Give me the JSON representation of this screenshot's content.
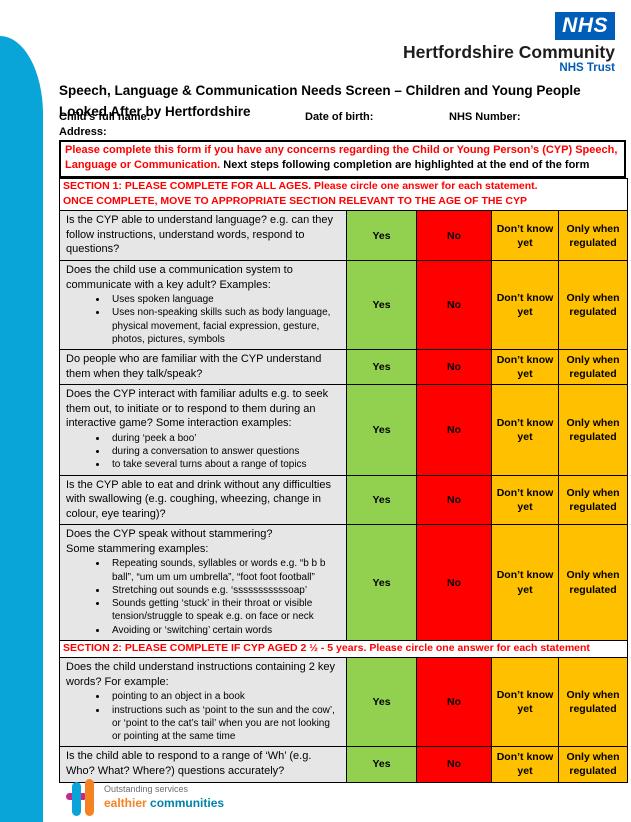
{
  "header": {
    "nhs_logo": "NHS",
    "org_name": "Hertfordshire Community",
    "org_sub": "NHS Trust"
  },
  "title": {
    "line1": "Speech, Language & Communication Needs Screen – Children and Young People",
    "line2": "Looked After by Hertfordshire"
  },
  "fields": {
    "name_label": "Child’s full name:",
    "dob_label": "Date of birth:",
    "nhs_number_label": "NHS Number:",
    "address_label": "Address:"
  },
  "notice": {
    "red_text": "Please complete this form if you have any concerns regarding the Child or Young Person’s (CYP) Speech, Language or Communication.",
    "black_text": " Next steps following completion are highlighted at the end of the form"
  },
  "table": {
    "answer_labels": [
      "Yes",
      "No",
      "Don’t know yet",
      "Only when regulated"
    ],
    "sections": [
      {
        "header": "SECTION 1: PLEASE COMPLETE FOR ALL AGES. Please circle one answer for each statement.\nONCE COMPLETE, MOVE TO APPROPRIATE SECTION RELEVANT TO THE AGE OF THE CYP",
        "rows": [
          {
            "question": "Is the CYP able to understand language? e.g. can they follow instructions, understand words, respond to questions?",
            "bullets": []
          },
          {
            "question": "Does the child use a communication system to communicate with a key adult? Examples:",
            "bullets": [
              "Uses spoken language",
              "Uses non-speaking skills such as body language, physical movement, facial expression, gesture, photos, pictures, symbols"
            ]
          },
          {
            "question": "Do people who are familiar with the CYP understand them when they talk/speak?",
            "bullets": []
          },
          {
            "question": "Does the CYP interact with familiar adults e.g. to seek them out, to initiate or to respond to them during an interactive game?  Some interaction examples:",
            "bullets": [
              "during ‘peek a boo’",
              "during a conversation to answer questions",
              "to take several turns about a range of topics"
            ]
          },
          {
            "question": "Is the CYP able to eat and drink without any difficulties with swallowing (e.g. coughing, wheezing, change in colour, eye tearing)?",
            "bullets": []
          },
          {
            "question": "Does the CYP speak without stammering?\nSome stammering examples:",
            "bullets": [
              "Repeating sounds, syllables or words e.g. “b b b ball”, “um um um umbrella”, “foot foot football”",
              "Stretching out sounds e.g. ‘sssssssssssoap’",
              "Sounds getting ‘stuck’ in their throat or visible tension/struggle to speak e.g. on face or neck",
              "Avoiding or ‘switching’ certain words"
            ]
          }
        ]
      },
      {
        "header": "SECTION 2: PLEASE COMPLETE IF CYP AGED 2 ½ - 5 years. Please circle one answer for each statement",
        "rows": [
          {
            "question": "Does the child understand instructions containing 2 key words?  For example:",
            "bullets": [
              "pointing to an object in a book",
              "instructions such as ‘point to the sun and the cow’, or ‘point to the cat’s tail’ when you are not looking or pointing at the same time"
            ]
          },
          {
            "question": "Is the child able to respond to a range of ‘Wh’ (e.g. Who? What? Where?) questions accurately?",
            "bullets": []
          }
        ]
      }
    ]
  },
  "footer": {
    "line1": "Outstanding services",
    "line2_orange": "ealthier",
    "line2_teal": " communities"
  },
  "colors": {
    "accent_teal": "#09A4D8",
    "nhs_blue": "#005EB8",
    "yes_green": "#92D050",
    "no_red": "#FF0000",
    "amber": "#FFC000",
    "question_grey": "#E7E6E6",
    "section_red_text": "#FF0000"
  }
}
